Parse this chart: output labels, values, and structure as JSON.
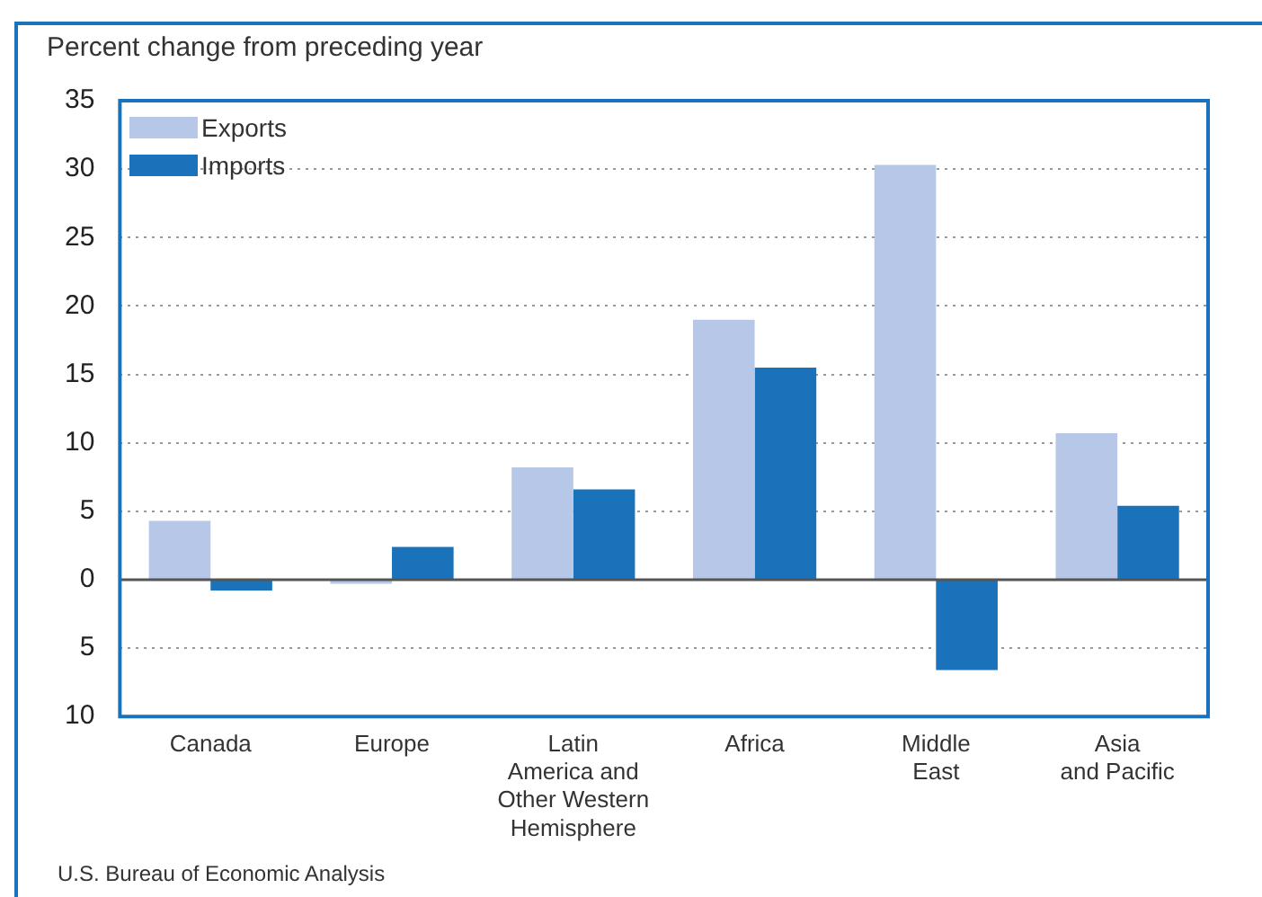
{
  "chart_data": {
    "type": "bar",
    "ylabel": "Percent change from preceding year",
    "categories": [
      "Canada",
      "Europe",
      "Latin\nAmerica and\nOther Western\nHemisphere",
      "Africa",
      "Middle\nEast",
      "Asia\nand Pacific"
    ],
    "series": [
      {
        "name": "Exports",
        "color": "#b7c7e7",
        "values": [
          4.3,
          -0.3,
          8.2,
          19.0,
          30.3,
          10.7
        ]
      },
      {
        "name": "Imports",
        "color": "#1a73ba",
        "values": [
          -0.8,
          2.4,
          6.6,
          15.5,
          -6.6,
          5.4
        ]
      }
    ],
    "ylim": [
      -10,
      35
    ],
    "yticks": [
      {
        "value": -10,
        "label": "10"
      },
      {
        "value": -5,
        "label": "5"
      },
      0,
      5,
      10,
      15,
      20,
      25,
      30,
      35
    ],
    "grid": "y",
    "legend": "top left",
    "annotations": [
      "U.S. Bureau of Economic Analysis"
    ]
  }
}
